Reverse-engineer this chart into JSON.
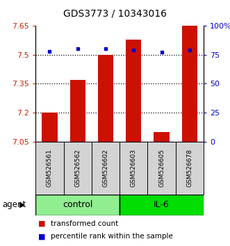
{
  "title": "GDS3773 / 10343016",
  "samples": [
    "GSM526561",
    "GSM526562",
    "GSM526602",
    "GSM526603",
    "GSM526605",
    "GSM526678"
  ],
  "transformed_counts": [
    7.2,
    7.37,
    7.5,
    7.58,
    7.1,
    7.65
  ],
  "percentile_ranks": [
    78,
    80,
    80,
    79,
    77,
    79
  ],
  "groups": [
    {
      "label": "control",
      "indices": [
        0,
        1,
        2
      ],
      "color": "#90EE90"
    },
    {
      "label": "IL-6",
      "indices": [
        3,
        4,
        5
      ],
      "color": "#00DD00"
    }
  ],
  "ylim_left": [
    7.05,
    7.65
  ],
  "ylim_right": [
    0,
    100
  ],
  "yticks_left": [
    7.05,
    7.2,
    7.35,
    7.5,
    7.65
  ],
  "yticks_right": [
    0,
    25,
    50,
    75,
    100
  ],
  "ytick_labels_left": [
    "7.05",
    "7.2",
    "7.35",
    "7.5",
    "7.65"
  ],
  "ytick_labels_right": [
    "0",
    "25",
    "50",
    "75",
    "100%"
  ],
  "bar_color": "#CC1100",
  "dot_color": "#0000CC",
  "bar_width": 0.55,
  "legend_labels": [
    "transformed count",
    "percentile rank within the sample"
  ],
  "agent_label": "agent",
  "grid_yticks": [
    7.2,
    7.35,
    7.5
  ],
  "bar_bottom": 7.05,
  "title_fontsize": 10,
  "tick_fontsize": 8,
  "sample_fontsize": 6.5,
  "group_fontsize": 9,
  "legend_fontsize": 7.5
}
